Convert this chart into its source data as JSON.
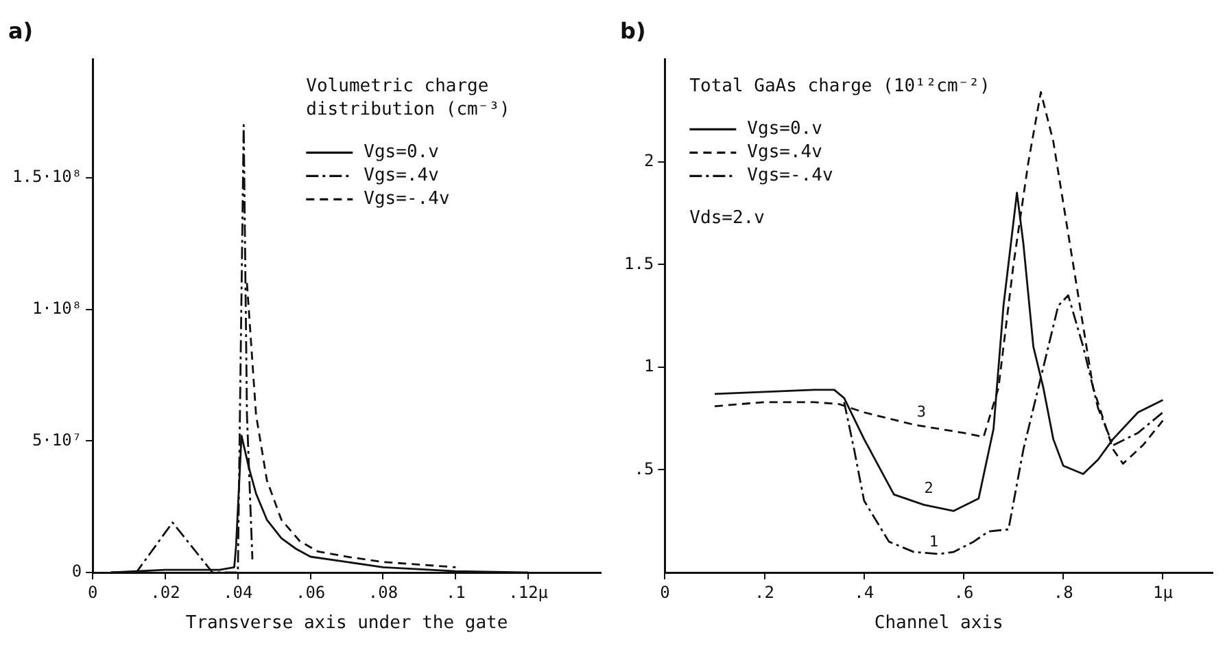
{
  "chart_data": [
    {
      "type": "line",
      "title": "a)",
      "xlabel": "Transverse axis under the gate",
      "annotations": [
        "Volumetric charge distribution (cm⁻³)"
      ],
      "xlim": [
        0,
        0.14
      ],
      "ylim": [
        0,
        195000000
      ],
      "xticks": [
        0,
        {
          "value": 0.02,
          "label": ".02"
        },
        {
          "value": 0.04,
          "label": ".04"
        },
        {
          "value": 0.06,
          "label": ".06"
        },
        {
          "value": 0.08,
          "label": ".08"
        },
        {
          "value": 0.1,
          "label": ".1"
        },
        {
          "value": 0.12,
          "label": ".12μ"
        }
      ],
      "yticks": [
        0,
        {
          "value": 50000000,
          "label": "5·10⁷"
        },
        {
          "value": 100000000,
          "label": "1·10⁸"
        },
        {
          "value": 150000000,
          "label": "1.5·10⁸"
        }
      ],
      "grid": false,
      "legend": "top right",
      "marker": "none",
      "series": [
        {
          "name": "Vgs=0.v",
          "color": "#111111",
          "line_style": "solid",
          "x": [
            0.005,
            0.02,
            0.035,
            0.039,
            0.0395,
            0.041,
            0.043,
            0.045,
            0.048,
            0.052,
            0.056,
            0.06,
            0.07,
            0.08,
            0.1,
            0.12
          ],
          "values": [
            0,
            1000000,
            1000000,
            2000000,
            10000000,
            52000000,
            40000000,
            30000000,
            20000000,
            13000000,
            9000000,
            6000000,
            4000000,
            2000000,
            500000,
            0
          ]
        },
        {
          "name": "Vgs=.4v",
          "color": "#111111",
          "line_style": "dashdot",
          "x": [
            0.005,
            0.012,
            0.022,
            0.033,
            0.04,
            0.0416,
            0.0425,
            0.044
          ],
          "values": [
            0,
            0,
            19000000,
            0,
            0,
            170000000,
            60000000,
            5000000
          ]
        },
        {
          "name": "Vgs=-.4v",
          "color": "#111111",
          "line_style": "dashed",
          "x": [
            0.0425,
            0.045,
            0.048,
            0.052,
            0.057,
            0.062,
            0.07,
            0.08,
            0.1
          ],
          "values": [
            110000000,
            60000000,
            35000000,
            20000000,
            12000000,
            8000000,
            6000000,
            4000000,
            2000000
          ]
        }
      ]
    },
    {
      "type": "line",
      "title": "b)",
      "xlabel": "Channel axis",
      "annotations": [
        "Total GaAs charge (10¹²cm⁻²)",
        "Vds=2.v",
        {
          "text": "3",
          "x": 0.515,
          "y": 0.73
        },
        {
          "text": "2",
          "x": 0.53,
          "y": 0.36
        },
        {
          "text": "1",
          "x": 0.54,
          "y": 0.1
        }
      ],
      "xlim": [
        0,
        1.1
      ],
      "ylim": [
        0,
        2.5
      ],
      "xticks": [
        0,
        {
          "value": 0.2,
          "label": ".2"
        },
        {
          "value": 0.4,
          "label": ".4"
        },
        {
          "value": 0.6,
          "label": ".6"
        },
        {
          "value": 0.8,
          "label": ".8"
        },
        {
          "value": 1,
          "label": "1μ"
        }
      ],
      "yticks": [
        {
          "value": 0.5,
          "label": ".5"
        },
        1,
        1.5,
        2
      ],
      "grid": false,
      "legend": "top left",
      "marker": "none",
      "series": [
        {
          "name": "Vgs=0.v",
          "color": "#111111",
          "line_style": "solid",
          "x": [
            0.1,
            0.2,
            0.3,
            0.34,
            0.36,
            0.4,
            0.46,
            0.52,
            0.58,
            0.63,
            0.66,
            0.68,
            0.707,
            0.72,
            0.74,
            0.76,
            0.78,
            0.8,
            0.84,
            0.87,
            0.9,
            0.95,
            1.0
          ],
          "values": [
            0.87,
            0.88,
            0.89,
            0.89,
            0.85,
            0.65,
            0.38,
            0.33,
            0.3,
            0.36,
            0.7,
            1.3,
            1.85,
            1.6,
            1.1,
            0.9,
            0.65,
            0.52,
            0.48,
            0.55,
            0.65,
            0.78,
            0.84
          ]
        },
        {
          "name": "Vgs=.4v",
          "color": "#111111",
          "line_style": "dashed",
          "x": [
            0.1,
            0.2,
            0.3,
            0.35,
            0.4,
            0.5,
            0.6,
            0.64,
            0.67,
            0.7,
            0.73,
            0.755,
            0.78,
            0.82,
            0.86,
            0.9,
            0.92,
            0.96,
            1.0
          ],
          "values": [
            0.81,
            0.83,
            0.83,
            0.82,
            0.78,
            0.72,
            0.68,
            0.66,
            0.9,
            1.5,
            2.0,
            2.34,
            2.1,
            1.5,
            0.9,
            0.6,
            0.53,
            0.62,
            0.74
          ]
        },
        {
          "name": "Vgs=-.4v",
          "color": "#111111",
          "line_style": "dashdot",
          "x": [
            0.36,
            0.38,
            0.4,
            0.45,
            0.5,
            0.55,
            0.58,
            0.62,
            0.65,
            0.69,
            0.72,
            0.76,
            0.79,
            0.81,
            0.84,
            0.87,
            0.9,
            0.95,
            1.0
          ],
          "values": [
            0.83,
            0.6,
            0.35,
            0.15,
            0.1,
            0.09,
            0.1,
            0.15,
            0.2,
            0.21,
            0.6,
            1.0,
            1.3,
            1.35,
            1.1,
            0.8,
            0.62,
            0.68,
            0.78
          ]
        }
      ]
    }
  ]
}
